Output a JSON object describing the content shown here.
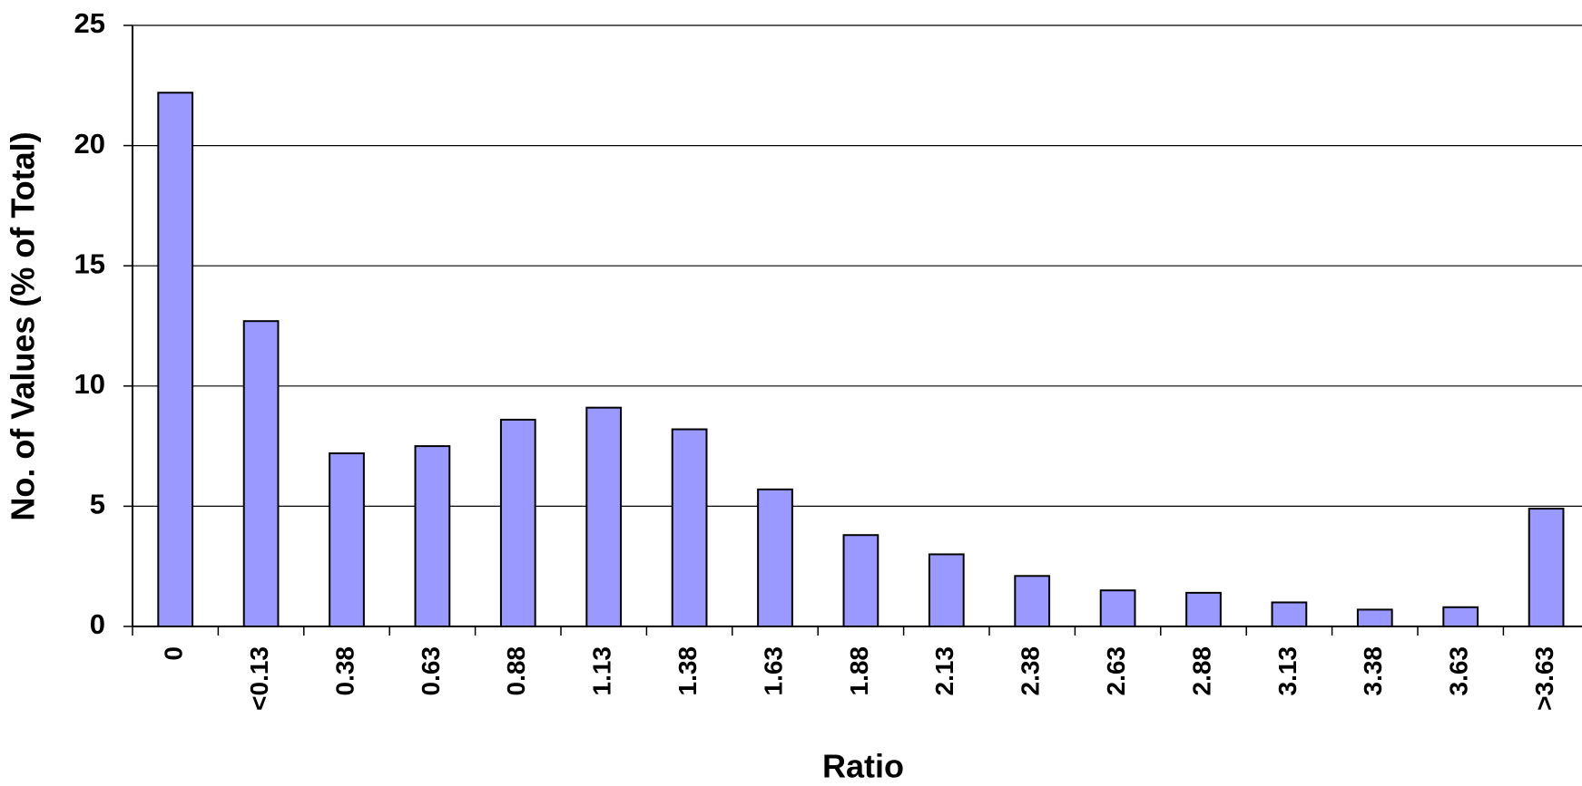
{
  "chart_data": {
    "type": "bar",
    "x_label": "Ratio",
    "y_label": "No. of Values (% of Total)",
    "categories": [
      "0",
      "<0.13",
      "0.38",
      "0.63",
      "0.88",
      "1.13",
      "1.38",
      "1.63",
      "1.88",
      "2.13",
      "2.38",
      "2.63",
      "2.88",
      "3.13",
      "3.38",
      "3.63",
      ">3.63"
    ],
    "values": [
      22.2,
      12.7,
      7.2,
      7.5,
      8.6,
      9.1,
      8.2,
      5.7,
      3.8,
      3.0,
      2.1,
      1.5,
      1.4,
      1.0,
      0.7,
      0.8,
      4.9
    ],
    "color": "#9999ff",
    "ylim": [
      0,
      25
    ],
    "yticks": [
      0,
      5,
      10,
      15,
      20,
      25
    ],
    "grid": true
  }
}
